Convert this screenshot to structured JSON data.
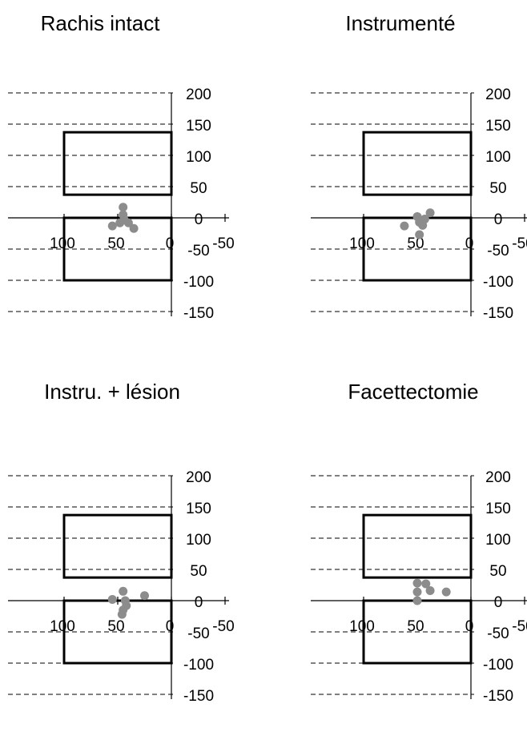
{
  "chart_data": [
    {
      "type": "scatter",
      "title": "Rachis intact",
      "x_axis": {
        "ticks": [
          100,
          50,
          0,
          -50
        ],
        "reversed": true
      },
      "y_axis": {
        "ticks": [
          200,
          150,
          100,
          50,
          0,
          -50,
          -100,
          -150
        ]
      },
      "regions": [
        {
          "x_range": [
            0,
            100
          ],
          "y_range": [
            37,
            137
          ]
        },
        {
          "x_range": [
            0,
            100
          ],
          "y_range": [
            -100,
            0
          ]
        }
      ],
      "grid": "dashed horizontal lines",
      "points": [
        {
          "x": 45,
          "y": 17
        },
        {
          "x": 45,
          "y": 5
        },
        {
          "x": 44,
          "y": -3
        },
        {
          "x": 48,
          "y": -8
        },
        {
          "x": 40,
          "y": -8
        },
        {
          "x": 55,
          "y": -13
        },
        {
          "x": 35,
          "y": -17
        }
      ]
    },
    {
      "type": "scatter",
      "title": "Instrumenté",
      "x_axis": {
        "ticks": [
          100,
          50,
          0,
          -50
        ],
        "reversed": true
      },
      "y_axis": {
        "ticks": [
          200,
          150,
          100,
          50,
          0,
          -50,
          -100,
          -150
        ]
      },
      "regions": [
        {
          "x_range": [
            0,
            100
          ],
          "y_range": [
            37,
            137
          ]
        },
        {
          "x_range": [
            0,
            100
          ],
          "y_range": [
            -100,
            0
          ]
        }
      ],
      "grid": "dashed horizontal lines",
      "points": [
        {
          "x": 38,
          "y": 8
        },
        {
          "x": 50,
          "y": 2
        },
        {
          "x": 43,
          "y": -2
        },
        {
          "x": 48,
          "y": -7
        },
        {
          "x": 45,
          "y": -12
        },
        {
          "x": 62,
          "y": -13
        },
        {
          "x": 48,
          "y": -27
        }
      ]
    },
    {
      "type": "scatter",
      "title": "Instru. + lésion",
      "x_axis": {
        "ticks": [
          100,
          50,
          0,
          -50
        ],
        "reversed": true
      },
      "y_axis": {
        "ticks": [
          200,
          150,
          100,
          50,
          0,
          -50,
          -100,
          -150
        ]
      },
      "regions": [
        {
          "x_range": [
            0,
            100
          ],
          "y_range": [
            37,
            137
          ]
        },
        {
          "x_range": [
            0,
            100
          ],
          "y_range": [
            -100,
            0
          ]
        }
      ],
      "grid": "dashed horizontal lines",
      "points": [
        {
          "x": 45,
          "y": 15
        },
        {
          "x": 25,
          "y": 8
        },
        {
          "x": 55,
          "y": 2
        },
        {
          "x": 43,
          "y": 0
        },
        {
          "x": 42,
          "y": -8
        },
        {
          "x": 45,
          "y": -15
        },
        {
          "x": 46,
          "y": -22
        }
      ]
    },
    {
      "type": "scatter",
      "title": "Facettectomie",
      "x_axis": {
        "ticks": [
          100,
          50,
          0,
          -50
        ],
        "reversed": true
      },
      "y_axis": {
        "ticks": [
          200,
          150,
          100,
          50,
          0,
          -50,
          -100,
          -150
        ]
      },
      "regions": [
        {
          "x_range": [
            0,
            100
          ],
          "y_range": [
            37,
            137
          ]
        },
        {
          "x_range": [
            0,
            100
          ],
          "y_range": [
            -100,
            0
          ]
        }
      ],
      "grid": "dashed horizontal lines",
      "points": [
        {
          "x": 50,
          "y": 28
        },
        {
          "x": 42,
          "y": 27
        },
        {
          "x": 38,
          "y": 16
        },
        {
          "x": 23,
          "y": 14
        },
        {
          "x": 50,
          "y": 14
        },
        {
          "x": 50,
          "y": 0
        }
      ]
    }
  ],
  "colors": {
    "points": "#8c8c8c",
    "rectangles": "#000000",
    "axes": "#000000",
    "grid": "#000000",
    "text": "#000000"
  }
}
